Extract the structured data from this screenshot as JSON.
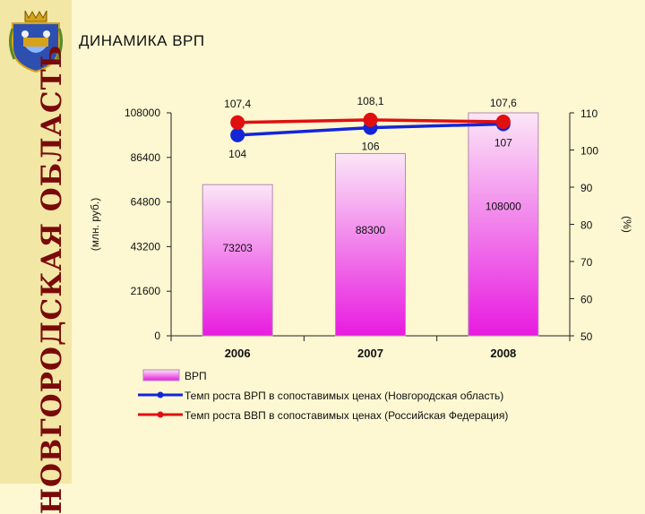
{
  "page": {
    "title": "ДИНАМИКА ВРП",
    "region_banner": "НОВГОРОДСКАЯ ОБЛАСТЬ",
    "emblem_icon": "novgorod-coat-of-arms-icon"
  },
  "colors": {
    "background": "#fdf7d2",
    "side_band": "#f3e7a6",
    "banner_text": "#7a0a0a",
    "bar_top": "#fbe6f7",
    "bar_bottom": "#e81be0",
    "line_novgorod": "#1326d6",
    "line_russia": "#e01010"
  },
  "chart_data": {
    "type": "bar",
    "categories": [
      "2006",
      "2007",
      "2008"
    ],
    "bars": {
      "name": "ВРП",
      "values": [
        73203,
        88300,
        108000
      ],
      "labels": [
        "73203",
        "88300",
        "108000"
      ]
    },
    "lines": [
      {
        "name": "Темп роста ВРП в сопоставимых ценах (Новгородская область)",
        "values": [
          104,
          106,
          107
        ],
        "labels": [
          "104",
          "106",
          "107"
        ],
        "color": "#1326d6"
      },
      {
        "name": "Темп роста ВВП в сопоставимых ценах (Российская Федерация)",
        "values": [
          107.4,
          108.1,
          107.6
        ],
        "labels": [
          "107,4",
          "108,1",
          "107,6"
        ],
        "color": "#e01010"
      }
    ],
    "ylabel_left": "(млн. руб.)",
    "ylabel_right": "(%)",
    "ylim_left": [
      0,
      108000
    ],
    "ylim_right": [
      50,
      110
    ],
    "yticks_left": [
      "0",
      "21600",
      "43200",
      "64800",
      "86400",
      "108000"
    ],
    "yticks_right": [
      "50",
      "60",
      "70",
      "80",
      "90",
      "100",
      "110"
    ],
    "grid": false,
    "legend_position": "bottom"
  }
}
